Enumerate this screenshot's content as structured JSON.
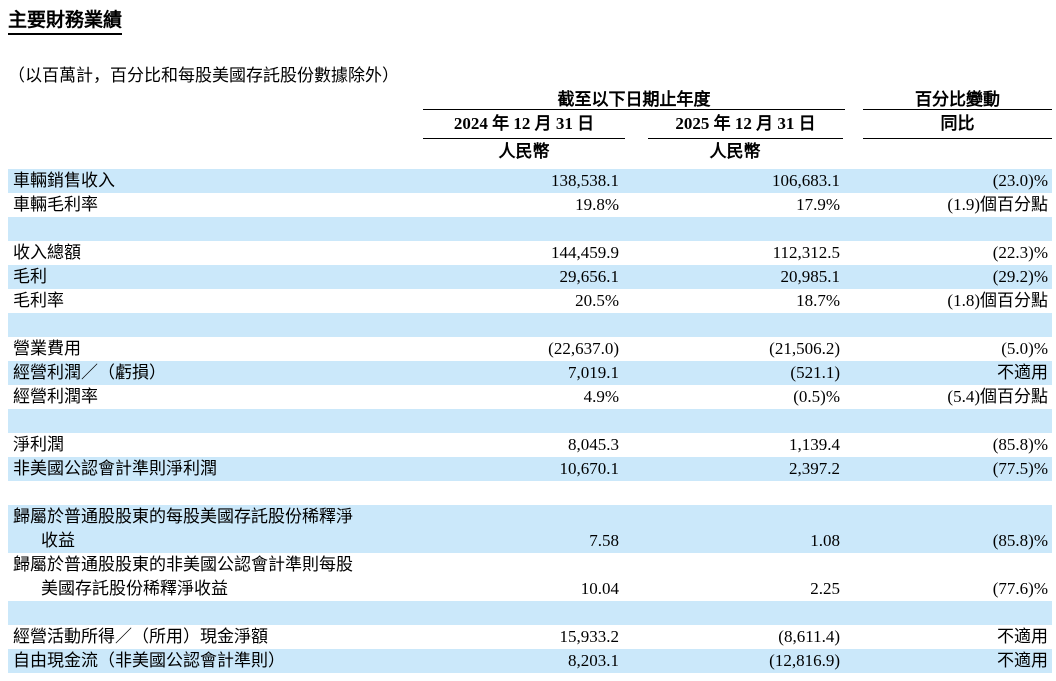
{
  "page": {
    "title": "主要財務業績",
    "subtitle": "（以百萬計，百分比和每股美國存託股份數據除外）"
  },
  "colors": {
    "row_highlight": "#cbe8fa",
    "text": "#000000",
    "rule": "#000000"
  },
  "table": {
    "header": {
      "period_group": "截至以下日期止年度",
      "change_group": "百分比變動",
      "col_2024": "2024 年 12 月 31 日",
      "col_2025": "2025 年 12 月 31 日",
      "col_change": "同比",
      "currency_2024": "人民幣",
      "currency_2025": "人民幣"
    },
    "rows": [
      {
        "label": "車輛銷售收入",
        "v2024": "138,538.1",
        "v2025": "106,683.1",
        "change": "(23.0)%",
        "shaded": true
      },
      {
        "label": "車輛毛利率",
        "v2024": "19.8%",
        "v2025": "17.9%",
        "change": "(1.9)個百分點",
        "shaded": false
      },
      {
        "type": "spacer",
        "shaded": true
      },
      {
        "label": "收入總額",
        "v2024": "144,459.9",
        "v2025": "112,312.5",
        "change": "(22.3)%",
        "shaded": false
      },
      {
        "label": "毛利",
        "v2024": "29,656.1",
        "v2025": "20,985.1",
        "change": "(29.2)%",
        "shaded": true
      },
      {
        "label": "毛利率",
        "v2024": "20.5%",
        "v2025": "18.7%",
        "change": "(1.8)個百分點",
        "shaded": false
      },
      {
        "type": "spacer",
        "shaded": true
      },
      {
        "label": "營業費用",
        "v2024": "(22,637.0)",
        "v2025": "(21,506.2)",
        "change": "(5.0)%",
        "shaded": false
      },
      {
        "label": "經營利潤／（虧損）",
        "v2024": "7,019.1",
        "v2025": "(521.1)",
        "change": "不適用",
        "shaded": true
      },
      {
        "label": "經營利潤率",
        "v2024": "4.9%",
        "v2025": "(0.5)%",
        "change": "(5.4)個百分點",
        "shaded": false
      },
      {
        "type": "spacer",
        "shaded": true
      },
      {
        "label": "淨利潤",
        "v2024": "8,045.3",
        "v2025": "1,139.4",
        "change": "(85.8)%",
        "shaded": false
      },
      {
        "label": "非美國公認會計準則淨利潤",
        "v2024": "10,670.1",
        "v2025": "2,397.2",
        "change": "(77.5)%",
        "shaded": true
      },
      {
        "type": "spacer",
        "shaded": false
      },
      {
        "label": "歸屬於普通股股東的每股美國存託股份稀釋淨",
        "label2": "收益",
        "v2024": "7.58",
        "v2025": "1.08",
        "change": "(85.8)%",
        "shaded": true
      },
      {
        "label": "歸屬於普通股股東的非美國公認會計準則每股",
        "label2": "美國存託股份稀釋淨收益",
        "v2024": "10.04",
        "v2025": "2.25",
        "change": "(77.6)%",
        "shaded": false
      },
      {
        "type": "spacer",
        "shaded": true
      },
      {
        "label": "經營活動所得／（所用）現金淨額",
        "v2024": "15,933.2",
        "v2025": "(8,611.4)",
        "change": "不適用",
        "shaded": false
      },
      {
        "label": "自由現金流（非美國公認會計準則）",
        "v2024": "8,203.1",
        "v2025": "(12,816.9)",
        "change": "不適用",
        "shaded": true
      }
    ]
  }
}
